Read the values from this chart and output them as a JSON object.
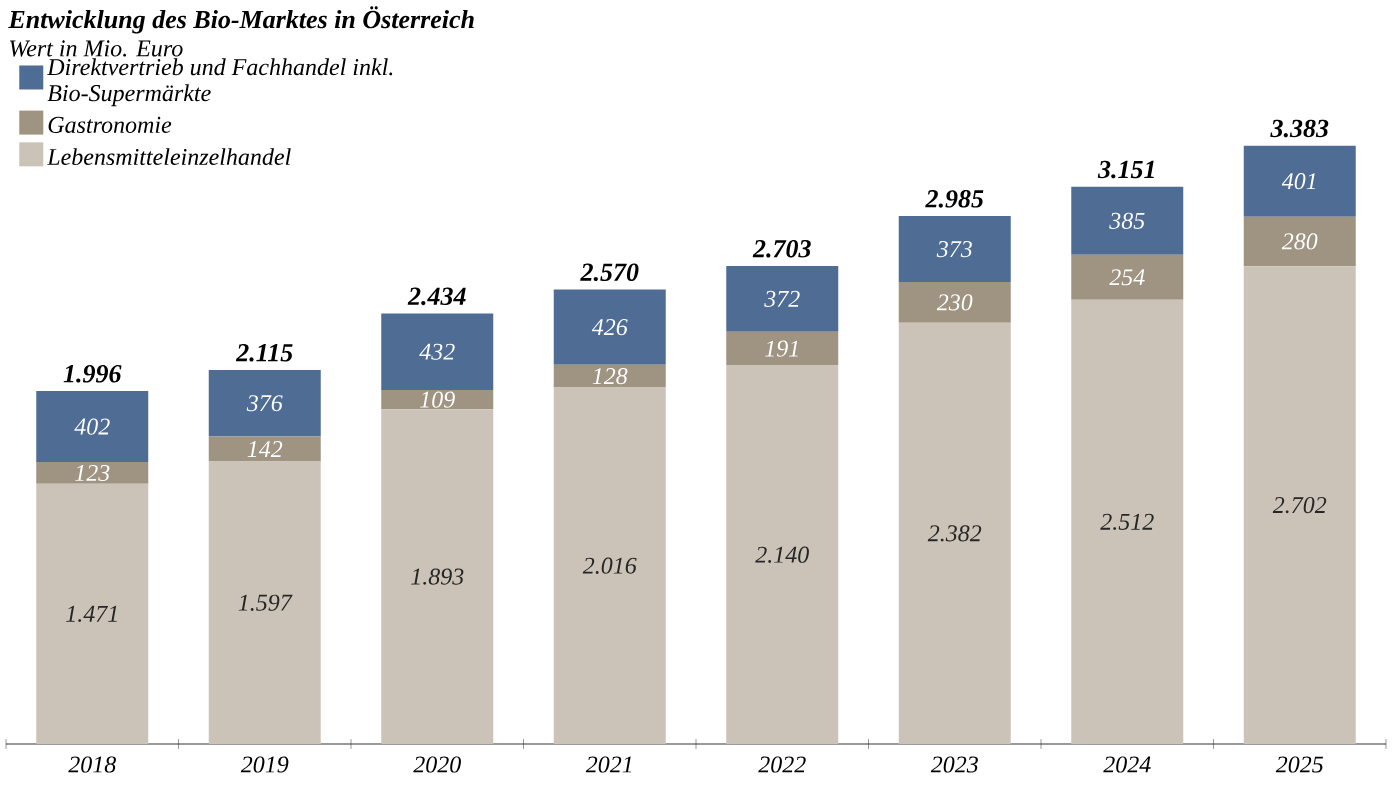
{
  "chart_data": {
    "type": "bar",
    "title": "Entwicklung des Bio-Marktes in Österreich",
    "subtitle": "Wert in Mio. Euro",
    "stacked": true,
    "legend": "top left",
    "categories": [
      "2018",
      "2019",
      "2020",
      "2021",
      "2022",
      "2023",
      "2024",
      "2025"
    ],
    "series": [
      {
        "name": "Lebensmitteleinzelhandel",
        "color": "#cbc3b7",
        "values": [
          1471,
          1597,
          1893,
          2016,
          2140,
          2382,
          2512,
          2702
        ],
        "value_labels": [
          "1.471",
          "1.597",
          "1.893",
          "2.016",
          "2.140",
          "2.382",
          "2.512",
          "2.702"
        ]
      },
      {
        "name": "Gastronomie",
        "color": "#9f9382",
        "values": [
          123,
          142,
          109,
          128,
          191,
          230,
          254,
          280
        ],
        "value_labels": [
          "123",
          "142",
          "109",
          "128",
          "191",
          "230",
          "254",
          "280"
        ]
      },
      {
        "name": "Direktvertrieb und Fachhandel inkl. Bio-Supermärkte",
        "color": "#4f6c94",
        "values": [
          402,
          376,
          432,
          426,
          372,
          373,
          385,
          401
        ],
        "value_labels": [
          "402",
          "376",
          "432",
          "426",
          "372",
          "373",
          "385",
          "401"
        ]
      }
    ],
    "totals": [
      "1.996",
      "2.115",
      "2.434",
      "2.570",
      "2.703",
      "2.985",
      "3.151",
      "3.383"
    ]
  }
}
